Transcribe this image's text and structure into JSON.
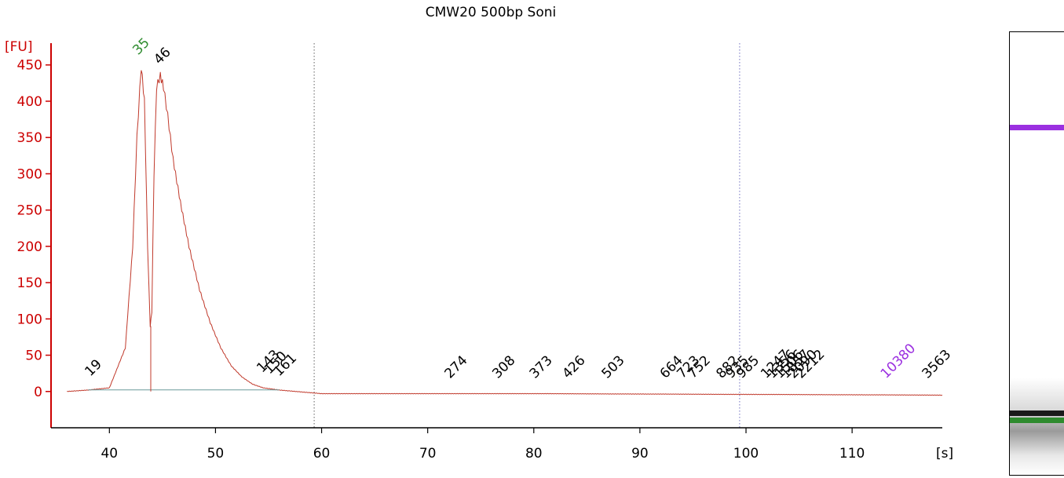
{
  "chart_data": {
    "type": "line",
    "title": "CMW20 500bp Soni",
    "ylabel": "[FU]",
    "xlabel": "[s]",
    "xlim": [
      34.5,
      118.5
    ],
    "ylim": [
      -50,
      480
    ],
    "y_ticks": [
      0,
      50,
      100,
      150,
      200,
      250,
      300,
      350,
      400,
      450
    ],
    "x_ticks": [
      40,
      50,
      60,
      70,
      80,
      90,
      100,
      110
    ],
    "grid": false,
    "colors": {
      "trace": "#c0392b",
      "axis": "#cc0000",
      "marker": "#2e8b2e",
      "upper_marker": "#9b30e0",
      "label": "#000000"
    },
    "series": [
      {
        "x": [
          36.0,
          38.0,
          40.0,
          41.5,
          42.2,
          42.6,
          43.0,
          43.3,
          43.6,
          43.85,
          44.0,
          44.2,
          44.45,
          44.8,
          45.1,
          45.5,
          46.0,
          46.7,
          47.5,
          48.5,
          49.5,
          50.5,
          51.5,
          52.5,
          53.5,
          54.5,
          56.0,
          60.0,
          80.0,
          100.0,
          118.5
        ],
        "values": [
          0,
          2,
          5,
          60,
          200,
          350,
          448,
          400,
          200,
          90,
          110,
          300,
          420,
          435,
          420,
          380,
          320,
          260,
          200,
          140,
          95,
          60,
          35,
          20,
          10,
          5,
          2,
          -3,
          -3,
          -4,
          -5
        ]
      }
    ],
    "peak_labels": [
      {
        "text": "19",
        "x": 38.5,
        "y": 5,
        "color": "#000000"
      },
      {
        "text": "35",
        "x": 43.0,
        "y": 448,
        "color": "#2e8b2e"
      },
      {
        "text": "46",
        "x": 45.0,
        "y": 435,
        "color": "#000000"
      },
      {
        "text": "143",
        "x": 54.7,
        "y": 10,
        "color": "#000000"
      },
      {
        "text": "150",
        "x": 55.4,
        "y": 8,
        "color": "#000000"
      },
      {
        "text": "161",
        "x": 56.3,
        "y": 5,
        "color": "#000000"
      },
      {
        "text": "274",
        "x": 72.4,
        "y": 2,
        "color": "#000000"
      },
      {
        "text": "308",
        "x": 76.9,
        "y": 2,
        "color": "#000000"
      },
      {
        "text": "373",
        "x": 80.4,
        "y": 2,
        "color": "#000000"
      },
      {
        "text": "426",
        "x": 83.5,
        "y": 2,
        "color": "#000000"
      },
      {
        "text": "503",
        "x": 87.2,
        "y": 2,
        "color": "#000000"
      },
      {
        "text": "664",
        "x": 92.7,
        "y": 2,
        "color": "#000000"
      },
      {
        "text": "723",
        "x": 94.3,
        "y": 2,
        "color": "#000000"
      },
      {
        "text": "752",
        "x": 95.3,
        "y": 2,
        "color": "#000000"
      },
      {
        "text": "882",
        "x": 98.0,
        "y": 2,
        "color": "#000000"
      },
      {
        "text": "935",
        "x": 98.9,
        "y": 2,
        "color": "#000000"
      },
      {
        "text": "985",
        "x": 99.9,
        "y": 2,
        "color": "#000000"
      },
      {
        "text": "1247",
        "x": 102.2,
        "y": 2,
        "color": "#000000"
      },
      {
        "text": "1356",
        "x": 102.8,
        "y": 2,
        "color": "#000000"
      },
      {
        "text": "1506",
        "x": 103.5,
        "y": 2,
        "color": "#000000"
      },
      {
        "text": "1857",
        "x": 104.1,
        "y": 2,
        "color": "#000000"
      },
      {
        "text": "2090",
        "x": 104.8,
        "y": 2,
        "color": "#000000"
      },
      {
        "text": "2212",
        "x": 105.5,
        "y": 2,
        "color": "#000000"
      },
      {
        "text": "10380",
        "x": 113.5,
        "y": 2,
        "color": "#9b30e0"
      },
      {
        "text": "3563",
        "x": 117.4,
        "y": 2,
        "color": "#000000"
      }
    ],
    "vertical_markers": [
      {
        "x": 59.3,
        "color": "#606060"
      },
      {
        "x": 99.4,
        "color": "#7070c0"
      }
    ],
    "gel_lane": {
      "bands": [
        {
          "position": 0.21,
          "color": "#9b30e0"
        },
        {
          "position": 0.855,
          "color": "#1a1a1a"
        },
        {
          "position": 0.87,
          "color": "#2e8b2e"
        }
      ]
    }
  }
}
